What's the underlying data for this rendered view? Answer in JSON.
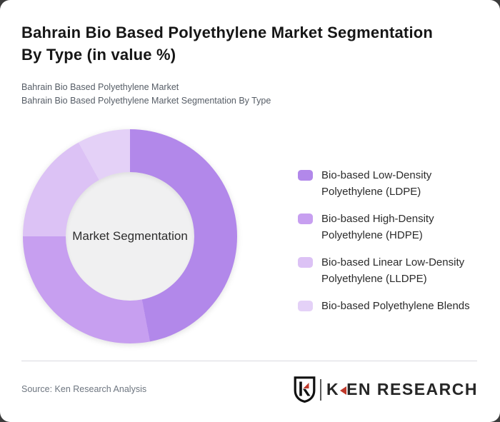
{
  "card": {
    "title_lines": [
      "Bahrain Bio Based Polyethylene Market Segmentation",
      "By Type (in value %)"
    ],
    "subtitle_lines": [
      "Bahrain Bio Based Polyethylene Market",
      "Bahrain Bio Based Polyethylene Market Segmentation By Type"
    ]
  },
  "chart_data": {
    "type": "pie",
    "variant": "donut",
    "title": "Bahrain Bio Based Polyethylene Market Segmentation By Type (in value %)",
    "unit": "value %",
    "center_label": "Market Segmentation",
    "start_angle_deg": 0,
    "direction": "clockwise",
    "legend_position": "right",
    "hole_color": "#f0f0f1",
    "segments": [
      {
        "label": "Bio-based Low-Density Polyethylene (LDPE)",
        "value": 47,
        "color": "#b288ea"
      },
      {
        "label": "Bio-based High-Density Polyethylene (HDPE)",
        "value": 28,
        "color": "#c79ff0"
      },
      {
        "label": "Bio-based Linear Low-Density Polyethylene (LLDPE)",
        "value": 17,
        "color": "#dcc2f5"
      },
      {
        "label": "Bio-based Polyethylene Blends",
        "value": 8,
        "color": "#e4d1f7"
      }
    ]
  },
  "footer": {
    "source": "Source: Ken Research Analysis",
    "logo": {
      "shield_letter": "K",
      "brand_first_letter": "K",
      "brand_rest": "EN RESEARCH",
      "accent_color": "#c0392b"
    }
  }
}
